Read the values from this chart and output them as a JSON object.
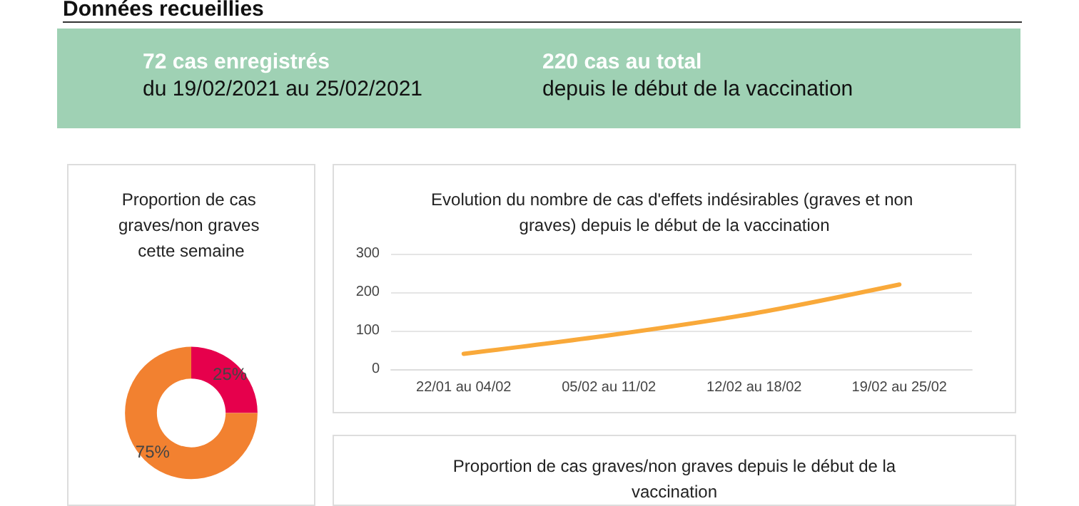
{
  "chart_data": [
    {
      "type": "other",
      "title": "Données recueillies",
      "annotations": [
        "72 cas enregistrés",
        "du 19/02/2021 au 25/02/2021",
        "220 cas au total",
        "depuis le début de la vaccination"
      ]
    },
    {
      "type": "donut",
      "title": "Proportion de cas graves/non graves cette semaine",
      "categories": [
        null,
        null
      ],
      "values": [
        25,
        75
      ],
      "colors": [
        "#e6004c",
        "#f28130"
      ],
      "value_labels": [
        "25%",
        "75%"
      ]
    },
    {
      "type": "line",
      "title": "Evolution du nombre de cas d'effets indésirables (graves et non graves) depuis le début de la vaccination",
      "categories": [
        "22/01 au 04/02",
        "05/02 au 11/02",
        "12/02 au 18/02",
        "19/02 au 25/02"
      ],
      "series": [
        {
          "color": "#f9a93a",
          "values": [
            40,
            88,
            145,
            220
          ]
        }
      ],
      "ylim": [
        0,
        300
      ],
      "yticks": [
        0,
        100,
        200,
        300
      ],
      "grid": "y",
      "marker": "none",
      "line_style": "solid"
    },
    {
      "type": "other",
      "title": "Proportion de cas graves/non graves depuis le début de la vaccination"
    }
  ]
}
